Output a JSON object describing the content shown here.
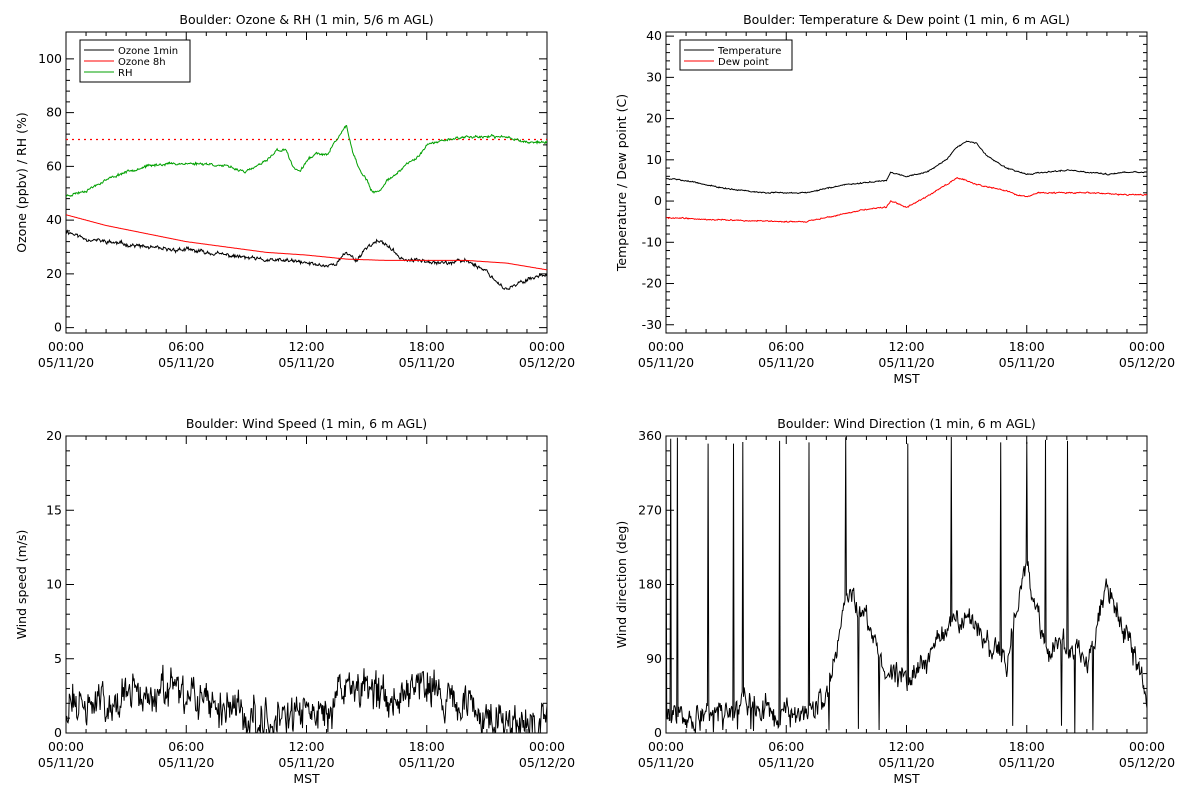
{
  "chart_data": [
    {
      "type": "line",
      "title": "Boulder: Ozone & RH (1 min, 5/6 m AGL)",
      "ylabel": "Ozone (ppbv) / RH (%)",
      "xlabel": "",
      "xlim": [
        0,
        24
      ],
      "ylim": [
        -2,
        110
      ],
      "yticks": [
        0,
        20,
        40,
        60,
        80,
        100
      ],
      "x_tick_labels": [
        [
          "00:00",
          "05/11/20"
        ],
        [
          "06:00",
          "05/11/20"
        ],
        [
          "12:00",
          "05/11/20"
        ],
        [
          "18:00",
          "05/11/20"
        ],
        [
          "00:00",
          "05/12/20"
        ]
      ],
      "legend": {
        "position": "top-left",
        "entries": [
          {
            "name": "Ozone 1min",
            "color": "#000000"
          },
          {
            "name": "Ozone 8h",
            "color": "#ff0000"
          },
          {
            "name": "RH",
            "color": "#00a000"
          }
        ]
      },
      "reference_line": {
        "y": 70,
        "color": "#ff0000",
        "style": "dotted"
      },
      "series": [
        {
          "name": "Ozone 1min",
          "color": "#000000",
          "noise": 1.2,
          "seed": 11,
          "x": [
            0,
            1,
            2,
            3,
            4,
            5,
            6,
            7,
            8,
            9,
            10,
            11,
            12,
            13,
            13.5,
            14,
            14.5,
            15,
            15.5,
            16,
            16.5,
            17,
            18,
            19,
            20,
            21,
            21.5,
            22,
            22.5,
            23,
            24
          ],
          "y": [
            36,
            33,
            32,
            31,
            30,
            29,
            29,
            28,
            27,
            26,
            25,
            25,
            24,
            23,
            24,
            28,
            25,
            30,
            32,
            31,
            27,
            25,
            25,
            24,
            25,
            21,
            17,
            14,
            16,
            18,
            20
          ]
        },
        {
          "name": "Ozone 8h",
          "color": "#ff0000",
          "noise": 0,
          "seed": 1,
          "x": [
            0,
            2,
            4,
            6,
            8,
            10,
            12,
            14,
            16,
            18,
            20,
            22,
            24
          ],
          "y": [
            42,
            38,
            35,
            32,
            30,
            28,
            27,
            25.5,
            25,
            25,
            25,
            24,
            21.5
          ]
        },
        {
          "name": "RH",
          "color": "#00a000",
          "noise": 0.8,
          "seed": 23,
          "x": [
            0,
            1,
            2,
            3,
            4,
            5,
            6,
            7,
            8,
            9,
            10,
            10.5,
            11,
            11.3,
            11.7,
            12,
            12.5,
            13,
            13.5,
            14,
            14.3,
            14.7,
            15,
            15.3,
            15.7,
            16,
            16.5,
            17,
            17.5,
            18,
            19,
            20,
            21,
            22,
            23,
            24
          ],
          "y": [
            49,
            51,
            55,
            58,
            60,
            61,
            61,
            61,
            60,
            58,
            62,
            66,
            66,
            60,
            58,
            62,
            65,
            64,
            70,
            75,
            65,
            58,
            55,
            50,
            51,
            55,
            57,
            61,
            63,
            68,
            70,
            71,
            71,
            71,
            69,
            69
          ]
        }
      ]
    },
    {
      "type": "line",
      "title": "Boulder: Temperature & Dew point (1 min, 6 m AGL)",
      "ylabel": "Temperature / Dew point (C)",
      "xlabel": "MST",
      "xlim": [
        0,
        24
      ],
      "ylim": [
        -32,
        41
      ],
      "yticks": [
        -30,
        -20,
        -10,
        0,
        10,
        20,
        30,
        40
      ],
      "x_tick_labels": [
        [
          "00:00",
          "05/11/20"
        ],
        [
          "06:00",
          "05/11/20"
        ],
        [
          "12:00",
          "05/11/20"
        ],
        [
          "18:00",
          "05/11/20"
        ],
        [
          "00:00",
          "05/12/20"
        ]
      ],
      "legend": {
        "position": "top-left",
        "entries": [
          {
            "name": "Temperature",
            "color": "#000000"
          },
          {
            "name": "Dew point",
            "color": "#ff0000"
          }
        ]
      },
      "series": [
        {
          "name": "Temperature",
          "color": "#000000",
          "noise": 0.25,
          "seed": 5,
          "x": [
            0,
            1,
            2,
            3,
            4,
            5,
            6,
            7,
            8,
            9,
            10,
            11,
            11.2,
            12,
            13,
            14,
            14.5,
            15,
            15.5,
            16,
            17,
            18,
            19,
            20,
            21,
            22,
            23,
            24
          ],
          "y": [
            5.5,
            5,
            4,
            3,
            2.5,
            2,
            2,
            2,
            3,
            4,
            4.5,
            5,
            7,
            6,
            7,
            10,
            13,
            14.5,
            14,
            11,
            8,
            6.5,
            7,
            7.5,
            7,
            6.5,
            7,
            7
          ]
        },
        {
          "name": "Dew point",
          "color": "#ff0000",
          "noise": 0.25,
          "seed": 9,
          "x": [
            0,
            1,
            2,
            3,
            4,
            5,
            6,
            7,
            7.5,
            8,
            9,
            10,
            11,
            11.2,
            12,
            13,
            14,
            14.5,
            15,
            15.5,
            16,
            17,
            17.5,
            18,
            18.5,
            19,
            20,
            21,
            22,
            23,
            24
          ],
          "y": [
            -4,
            -4.2,
            -4.5,
            -4.5,
            -4.8,
            -4.8,
            -5,
            -5,
            -4.5,
            -4,
            -3,
            -2,
            -1.5,
            0,
            -1.5,
            1,
            4,
            5.5,
            5,
            4,
            3.5,
            2.5,
            1.5,
            1,
            2,
            2,
            2,
            2,
            1.8,
            1.5,
            1.5
          ]
        }
      ]
    },
    {
      "type": "line",
      "title": "Boulder: Wind Speed (1 min, 6 m AGL)",
      "ylabel": "Wind speed (m/s)",
      "xlabel": "MST",
      "xlim": [
        0,
        24
      ],
      "ylim": [
        0,
        20
      ],
      "yticks": [
        0,
        5,
        10,
        15,
        20
      ],
      "x_tick_labels": [
        [
          "00:00",
          "05/11/20"
        ],
        [
          "06:00",
          "05/11/20"
        ],
        [
          "12:00",
          "05/11/20"
        ],
        [
          "18:00",
          "05/11/20"
        ],
        [
          "00:00",
          "05/12/20"
        ]
      ],
      "series": [
        {
          "name": "",
          "color": "#000000",
          "noise": 2.2,
          "seed": 31,
          "floor": 0,
          "x": [
            0,
            1,
            2,
            3,
            4,
            5,
            6,
            7,
            8,
            9,
            10,
            11,
            12,
            13,
            14,
            15,
            16,
            17,
            18,
            19,
            20,
            21,
            22,
            23,
            24
          ],
          "y": [
            1.8,
            1.8,
            2.2,
            2.5,
            2.5,
            2.8,
            2.2,
            2,
            1.8,
            1.2,
            1,
            1.2,
            1.2,
            1.5,
            3,
            3,
            2.5,
            3,
            4,
            2,
            1.5,
            1,
            0.8,
            0.8,
            0.8
          ]
        }
      ]
    },
    {
      "type": "line",
      "title": "Boulder: Wind Direction (1 min, 6 m AGL)",
      "ylabel": "Wind direction (deg)",
      "xlabel": "MST",
      "xlim": [
        0,
        24
      ],
      "ylim": [
        0,
        360
      ],
      "yticks": [
        0,
        90,
        180,
        270,
        360
      ],
      "x_tick_labels": [
        [
          "00:00",
          "05/11/20"
        ],
        [
          "06:00",
          "05/11/20"
        ],
        [
          "12:00",
          "05/11/20"
        ],
        [
          "18:00",
          "05/11/20"
        ],
        [
          "00:00",
          "05/12/20"
        ]
      ],
      "series": [
        {
          "name": "",
          "color": "#000000",
          "noise": 25,
          "seed": 47,
          "floor": 0,
          "ceil": 360,
          "wrap_spikes": true,
          "x": [
            0,
            1,
            2,
            3,
            4,
            5,
            6,
            7,
            8,
            9,
            10,
            11,
            12,
            13,
            14,
            15,
            16,
            17,
            18,
            19,
            20,
            21,
            22,
            23,
            24
          ],
          "y": [
            20,
            20,
            20,
            30,
            35,
            30,
            25,
            25,
            40,
            170,
            140,
            80,
            60,
            90,
            130,
            140,
            110,
            90,
            200,
            100,
            110,
            80,
            180,
            120,
            40
          ]
        }
      ]
    }
  ]
}
